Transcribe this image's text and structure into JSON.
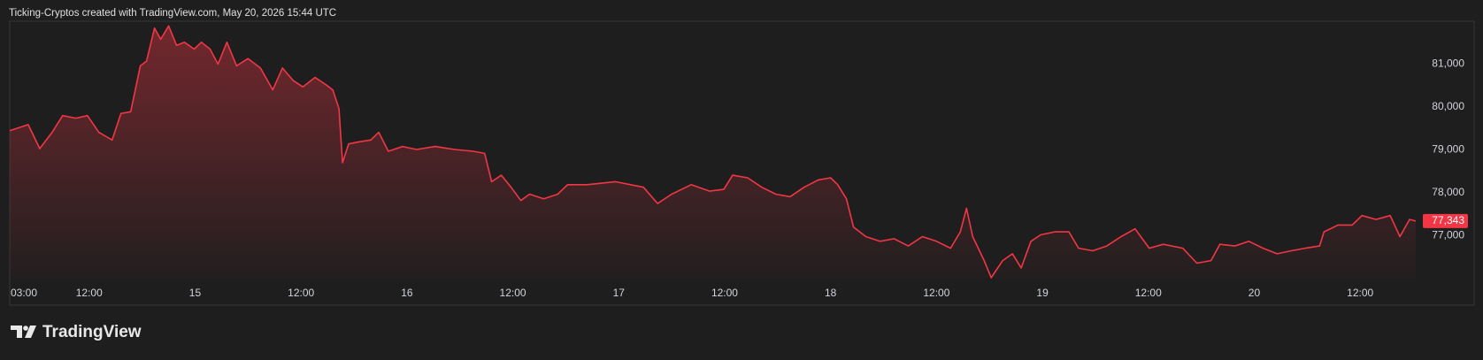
{
  "header": "Ticking-Cryptos created with TradingView.com, May 20, 2026 15:44 UTC",
  "brand": "TradingView",
  "chart_data": {
    "type": "area",
    "x": [
      3,
      5.1,
      6.4,
      7.8,
      9,
      10.5,
      11.8,
      13.1,
      14.6,
      15.6,
      16.7,
      17.8,
      18.5,
      19.4,
      20.1,
      21,
      21.9,
      22.8,
      23.9,
      24.7,
      25.7,
      26.6,
      27.6,
      28.7,
      30,
      31.4,
      32.8,
      33.9,
      35.1,
      36.2,
      37.6,
      38.9,
      39.6,
      40.3,
      40.7,
      41.4,
      42.6,
      43.9,
      44.8,
      45.9,
      47.5,
      49.1,
      51.2,
      53.4,
      55.5,
      56.8,
      57.6,
      58.7,
      59.8,
      60.9,
      61.9,
      63.5,
      65.1,
      66.2,
      68.4,
      71.6,
      74.8,
      76.4,
      78,
      80.2,
      82.3,
      83.9,
      84.9,
      86.6,
      88.2,
      89.8,
      91.4,
      93,
      94.6,
      96,
      96.8,
      97.8,
      98.6,
      100,
      101.6,
      103.2,
      104.8,
      106.4,
      108,
      109.6,
      110.7,
      111.4,
      112.1,
      113.4,
      114.2,
      115.5,
      116.6,
      117.6,
      118.7,
      119.8,
      121.4,
      123,
      124.1,
      125.7,
      127.3,
      128.9,
      130.5,
      132.1,
      133.7,
      135.9,
      137.5,
      139.1,
      140.1,
      141.8,
      143.4,
      145,
      146.6,
      148.2,
      149.8,
      151.4,
      151.9,
      153.5,
      155.1,
      156.2,
      157.8,
      159.4,
      160.5,
      161.6,
      162.3
    ],
    "series": [
      {
        "color": "#f23645",
        "values": [
          79450,
          79590,
          79030,
          79410,
          79800,
          79740,
          79800,
          79410,
          79230,
          79850,
          79890,
          80960,
          81070,
          81840,
          81580,
          81890,
          81440,
          81510,
          81350,
          81510,
          81350,
          81000,
          81510,
          80960,
          81130,
          80910,
          80400,
          80910,
          80620,
          80470,
          80690,
          80510,
          80400,
          79960,
          78700,
          79140,
          79190,
          79230,
          79410,
          78970,
          79080,
          79010,
          79080,
          79010,
          78970,
          78920,
          78260,
          78410,
          78130,
          77820,
          77970,
          77860,
          77970,
          78190,
          78190,
          78260,
          78130,
          77750,
          77970,
          78190,
          78040,
          78080,
          78410,
          78350,
          78130,
          77970,
          77910,
          78130,
          78300,
          78350,
          78190,
          77860,
          77200,
          76980,
          76870,
          76930,
          76760,
          76980,
          76870,
          76710,
          77090,
          77640,
          76980,
          76420,
          76020,
          76420,
          76580,
          76250,
          76870,
          77020,
          77090,
          77090,
          76710,
          76650,
          76760,
          76980,
          77160,
          76710,
          76800,
          76710,
          76360,
          76420,
          76800,
          76760,
          76870,
          76710,
          76580,
          76650,
          76710,
          76760,
          77090,
          77250,
          77250,
          77470,
          77380,
          77470,
          76980,
          77380,
          77343
        ]
      }
    ],
    "last_price": {
      "value": 77343,
      "label": "77,343"
    },
    "xlim": [
      3,
      163
    ],
    "ylim": [
      76000,
      82000
    ],
    "xticks": [
      {
        "value": 3,
        "label": "03:00"
      },
      {
        "value": 12,
        "label": "12:00"
      },
      {
        "value": 24,
        "label": "15"
      },
      {
        "value": 36,
        "label": "12:00"
      },
      {
        "value": 48,
        "label": "16"
      },
      {
        "value": 60,
        "label": "12:00"
      },
      {
        "value": 72,
        "label": "17"
      },
      {
        "value": 84,
        "label": "12:00"
      },
      {
        "value": 96,
        "label": "18"
      },
      {
        "value": 108,
        "label": "12:00"
      },
      {
        "value": 120,
        "label": "19"
      },
      {
        "value": 132,
        "label": "12:00"
      },
      {
        "value": 144,
        "label": "20"
      },
      {
        "value": 156,
        "label": "12:00"
      }
    ],
    "yticks": [
      {
        "value": 77000,
        "label": "77,000"
      },
      {
        "value": 78000,
        "label": "78,000"
      },
      {
        "value": 79000,
        "label": "79,000"
      },
      {
        "value": 80000,
        "label": "80,000"
      },
      {
        "value": 81000,
        "label": "81,000"
      }
    ]
  }
}
